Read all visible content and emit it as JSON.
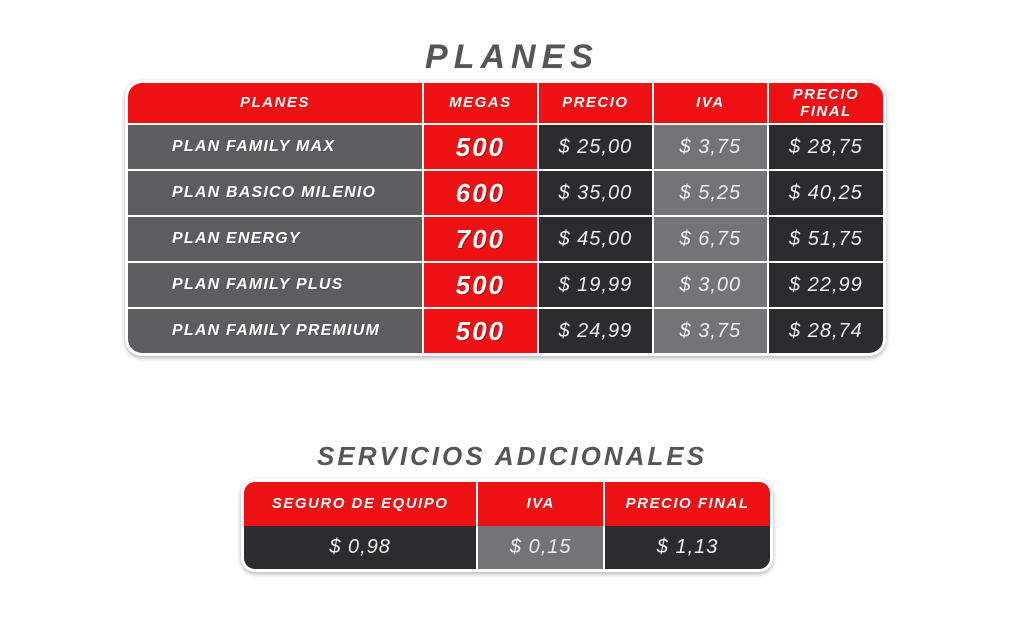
{
  "colors": {
    "red": "#ee1113",
    "dark_cell": "#2c2c2e",
    "gray_plan": "#5d5d60",
    "gray_iva": "#747477",
    "title_gray": "#56565a",
    "price_text": "#ececec",
    "page_bg": "#ffffff"
  },
  "planes_section": {
    "title": "PLANES",
    "table": {
      "headers": [
        "PLANES",
        "MEGAS",
        "PRECIO",
        "IVA",
        "PRECIO FINAL"
      ],
      "rows": [
        {
          "plan": "PLAN FAMILY MAX",
          "megas": "500",
          "precio": "$ 25,00",
          "iva": "$ 3,75",
          "precio_final": "$ 28,75"
        },
        {
          "plan": "PLAN BASICO MILENIO",
          "megas": "600",
          "precio": "$ 35,00",
          "iva": "$ 5,25",
          "precio_final": "$ 40,25"
        },
        {
          "plan": "PLAN ENERGY",
          "megas": "700",
          "precio": "$ 45,00",
          "iva": "$ 6,75",
          "precio_final": "$ 51,75"
        },
        {
          "plan": "PLAN FAMILY PLUS",
          "megas": "500",
          "precio": "$ 19,99",
          "iva": "$ 3,00",
          "precio_final": "$ 22,99"
        },
        {
          "plan": "PLAN FAMILY PREMIUM",
          "megas": "500",
          "precio": "$ 24,99",
          "iva": "$ 3,75",
          "precio_final": "$ 28,74"
        }
      ]
    }
  },
  "servicios_section": {
    "title": "SERVICIOS ADICIONALES",
    "table": {
      "headers": [
        "SEGURO DE EQUIPO",
        "IVA",
        "PRECIO FINAL"
      ],
      "row": {
        "seguro": "$ 0,98",
        "iva": "$ 0,15",
        "precio_final": "$ 1,13"
      }
    }
  }
}
